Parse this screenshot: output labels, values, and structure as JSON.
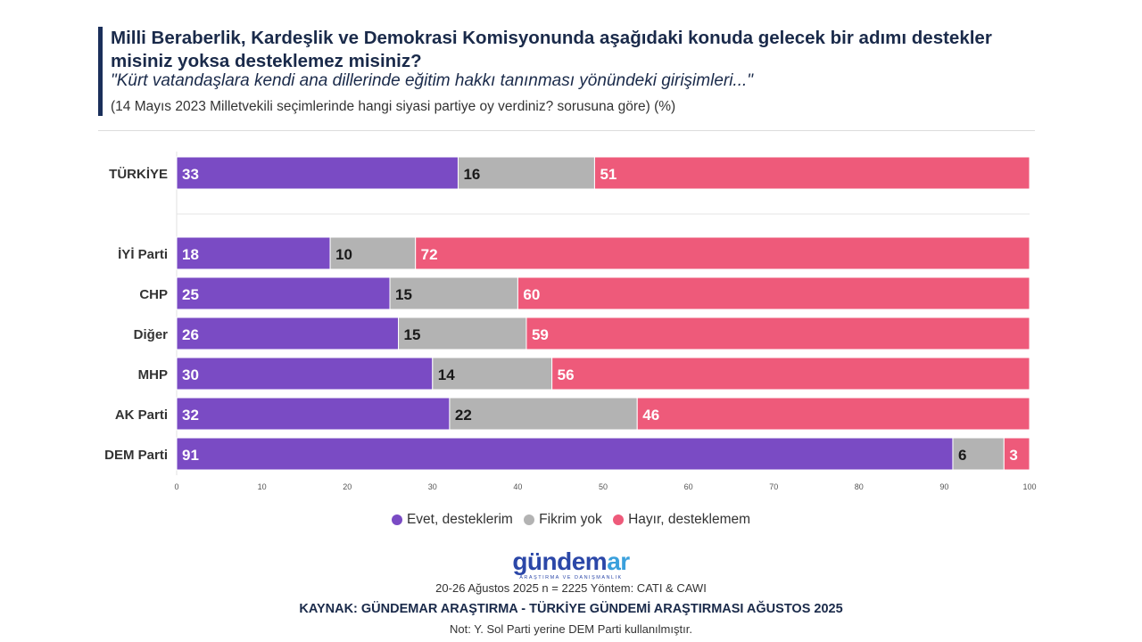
{
  "header": {
    "title": "Milli Beraberlik, Kardeşlik ve Demokrasi Komisyonunda aşağıdaki konuda gelecek bir adımı destekler misiniz yoksa desteklemez misiniz?",
    "subtitle": "\"Kürt vatandaşlara kendi ana dillerinde eğitim hakkı tanınması yönündeki girişimleri...\"",
    "note": "(14 Mayıs 2023 Milletvekili seçimlerinde hangi siyasi partiye oy verdiniz? sorusuna göre) (%)"
  },
  "chart_data": {
    "type": "bar",
    "orientation": "horizontal",
    "stacked": true,
    "categories": [
      "TÜRKİYE",
      "İYİ Parti",
      "CHP",
      "Diğer",
      "MHP",
      "AK Parti",
      "DEM Parti"
    ],
    "series": [
      {
        "name": "Evet, desteklerim",
        "color": "#7a4bc4",
        "values": [
          33,
          18,
          25,
          26,
          30,
          32,
          91
        ]
      },
      {
        "name": "Fikrim yok",
        "color": "#b3b3b3",
        "values": [
          16,
          10,
          15,
          15,
          14,
          22,
          6
        ]
      },
      {
        "name": "Hayır, desteklemem",
        "color": "#ee5a7a",
        "values": [
          51,
          72,
          60,
          59,
          56,
          46,
          3
        ]
      }
    ],
    "xlim": [
      0,
      100
    ],
    "xticks": [
      0,
      10,
      20,
      30,
      40,
      50,
      60,
      70,
      80,
      90,
      100
    ],
    "legend_position": "bottom"
  },
  "legend": {
    "items": [
      {
        "label": "Evet, desteklerim",
        "color": "#7a4bc4"
      },
      {
        "label": "Fikrim yok",
        "color": "#b3b3b3"
      },
      {
        "label": "Hayır, desteklemem",
        "color": "#ee5a7a"
      }
    ]
  },
  "footer": {
    "logo_main": "gündem",
    "logo_accent": "ar",
    "logo_sub": "ARAŞTIRMA VE DANIŞMANLIK",
    "method": "20-26 Ağustos 2025 n = 2225 Yöntem: CATI & CAWI",
    "source": "KAYNAK: GÜNDEMAR ARAŞTIRMA - TÜRKİYE GÜNDEMİ ARAŞTIRMASI AĞUSTOS 2025",
    "footnote": "Not: Y. Sol Parti yerine DEM Parti kullanılmıştır."
  }
}
